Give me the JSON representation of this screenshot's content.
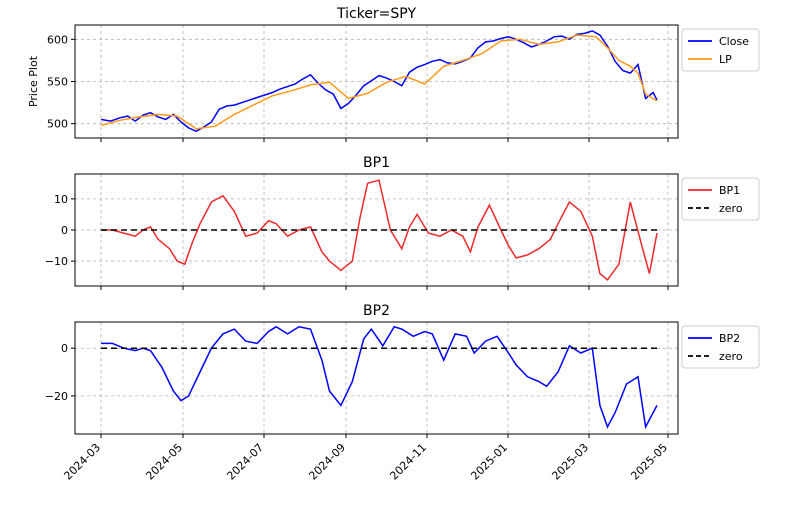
{
  "figure": {
    "xticks": [
      "2024-03",
      "2024-05",
      "2024-07",
      "2024-09",
      "2024-11",
      "2025-01",
      "2025-03",
      "2025-05"
    ],
    "xdomain": [
      0,
      14.6
    ]
  },
  "chart_data": [
    {
      "type": "line",
      "title": "Ticker=SPY",
      "ylabel": "Price Plot",
      "ylim": [
        483,
        617
      ],
      "yticks": [
        500,
        550,
        600
      ],
      "grid": true,
      "legend_position": "upper-right-outside",
      "series": [
        {
          "name": "Close",
          "color": "#0000ff",
          "x": [
            0,
            0.25,
            0.5,
            0.7,
            0.9,
            1.1,
            1.3,
            1.5,
            1.7,
            1.9,
            2.1,
            2.3,
            2.5,
            2.7,
            2.9,
            3.1,
            3.3,
            3.5,
            3.7,
            3.9,
            4.1,
            4.3,
            4.5,
            4.7,
            4.9,
            5.1,
            5.3,
            5.5,
            5.7,
            5.9,
            6.1,
            6.3,
            6.5,
            6.7,
            6.9,
            7.1,
            7.3,
            7.5,
            7.7,
            7.9,
            8.1,
            8.3,
            8.5,
            8.7,
            8.9,
            9.1,
            9.3,
            9.5,
            9.7,
            9.9,
            10.1,
            10.3,
            10.5,
            10.7,
            10.9,
            11.1,
            11.3,
            11.5,
            11.7,
            11.9,
            12.1,
            12.3,
            12.5,
            12.7,
            12.9,
            13.1,
            13.3,
            13.5,
            13.7,
            13.9,
            14.1,
            14.3,
            14.5,
            14.6
          ],
          "values": [
            505,
            503,
            507,
            509,
            503,
            510,
            513,
            508,
            505,
            511,
            502,
            495,
            491,
            496,
            502,
            517,
            521,
            522,
            525,
            528,
            531,
            534,
            537,
            541,
            544,
            547,
            553,
            558,
            548,
            540,
            535,
            518,
            524,
            534,
            545,
            551,
            557,
            554,
            550,
            545,
            561,
            567,
            570,
            574,
            576,
            572,
            571,
            574,
            578,
            590,
            597,
            598,
            601,
            603,
            600,
            596,
            591,
            594,
            598,
            603,
            604,
            600,
            606,
            607,
            610,
            605,
            592,
            574,
            563,
            560,
            570,
            530,
            537,
            528
          ]
        },
        {
          "name": "LP",
          "color": "#ff9a1a",
          "x": [
            0,
            0.5,
            1,
            1.5,
            2,
            2.5,
            3,
            3.5,
            4,
            4.5,
            5,
            5.5,
            6,
            6.5,
            7,
            7.5,
            8,
            8.5,
            9,
            9.5,
            10,
            10.5,
            11,
            11.5,
            12,
            12.5,
            13,
            13.3,
            13.6,
            13.9,
            14.1,
            14.3,
            14.6
          ],
          "values": [
            498,
            504,
            508,
            511,
            509,
            494,
            497,
            511,
            522,
            533,
            539,
            546,
            549,
            530,
            536,
            549,
            556,
            547,
            568,
            575,
            583,
            598,
            600,
            594,
            597,
            605,
            603,
            590,
            575,
            568,
            560,
            535,
            527
          ]
        }
      ]
    },
    {
      "type": "line",
      "title": "BP1",
      "ylabel": "",
      "ylim": [
        -18,
        18
      ],
      "yticks": [
        -10,
        0,
        10
      ],
      "grid": true,
      "legend_position": "upper-right-outside",
      "series": [
        {
          "name": "BP1",
          "color": "#ee2a2a",
          "x": [
            0,
            0.3,
            0.6,
            0.9,
            1.1,
            1.3,
            1.5,
            1.8,
            2,
            2.2,
            2.4,
            2.6,
            2.9,
            3.2,
            3.5,
            3.8,
            4.1,
            4.4,
            4.6,
            4.9,
            5.2,
            5.5,
            5.8,
            6,
            6.3,
            6.6,
            6.8,
            7,
            7.3,
            7.6,
            7.9,
            8.1,
            8.3,
            8.6,
            8.9,
            9.2,
            9.5,
            9.7,
            9.9,
            10.2,
            10.5,
            10.7,
            10.9,
            11.2,
            11.5,
            11.8,
            12,
            12.3,
            12.6,
            12.9,
            13.1,
            13.3,
            13.6,
            13.9,
            14.2,
            14.4,
            14.6
          ],
          "values": [
            0,
            0,
            -1,
            -2,
            0,
            1,
            -3,
            -6,
            -10,
            -11,
            -4,
            2,
            9,
            11,
            6,
            -2,
            -1,
            3,
            2,
            -2,
            0,
            1,
            -7,
            -10,
            -13,
            -10,
            4,
            15,
            16,
            0,
            -6,
            1,
            5,
            -1,
            -2,
            0,
            -2,
            -7,
            1,
            8,
            0,
            -5,
            -9,
            -8,
            -6,
            -3,
            2,
            9,
            6,
            -2,
            -14,
            -16,
            -11,
            9,
            -5,
            -14,
            -1
          ]
        },
        {
          "name": "zero",
          "color": "#000000",
          "style": "dashed",
          "x": [
            0,
            14.6
          ],
          "values": [
            0,
            0
          ]
        }
      ]
    },
    {
      "type": "line",
      "title": "BP2",
      "ylabel": "",
      "ylim": [
        -36,
        11
      ],
      "yticks": [
        -20,
        0
      ],
      "grid": true,
      "legend_position": "upper-right-outside",
      "series": [
        {
          "name": "BP2",
          "color": "#0000ff",
          "x": [
            0,
            0.3,
            0.6,
            0.9,
            1.1,
            1.3,
            1.6,
            1.9,
            2.1,
            2.3,
            2.6,
            2.9,
            3.2,
            3.5,
            3.8,
            4.1,
            4.4,
            4.6,
            4.9,
            5.2,
            5.5,
            5.8,
            6,
            6.3,
            6.6,
            6.9,
            7.1,
            7.4,
            7.7,
            7.9,
            8.2,
            8.5,
            8.7,
            9,
            9.3,
            9.6,
            9.8,
            10.1,
            10.4,
            10.7,
            10.9,
            11.2,
            11.5,
            11.7,
            12,
            12.3,
            12.6,
            12.9,
            13.1,
            13.3,
            13.5,
            13.8,
            14.1,
            14.3,
            14.6
          ],
          "values": [
            2,
            2,
            0,
            -1,
            0,
            -1,
            -8,
            -18,
            -22,
            -20,
            -10,
            0,
            6,
            8,
            3,
            2,
            7,
            9,
            6,
            9,
            8,
            -5,
            -18,
            -24,
            -14,
            4,
            8,
            1,
            9,
            8,
            5,
            7,
            6,
            -5,
            6,
            5,
            -2,
            3,
            5,
            -2,
            -7,
            -12,
            -14,
            -16,
            -10,
            1,
            -2,
            0,
            -24,
            -33,
            -27,
            -15,
            -12,
            -33,
            -24
          ]
        },
        {
          "name": "zero",
          "color": "#000000",
          "style": "dashed",
          "x": [
            0,
            14.6
          ],
          "values": [
            0,
            0
          ]
        }
      ]
    }
  ]
}
